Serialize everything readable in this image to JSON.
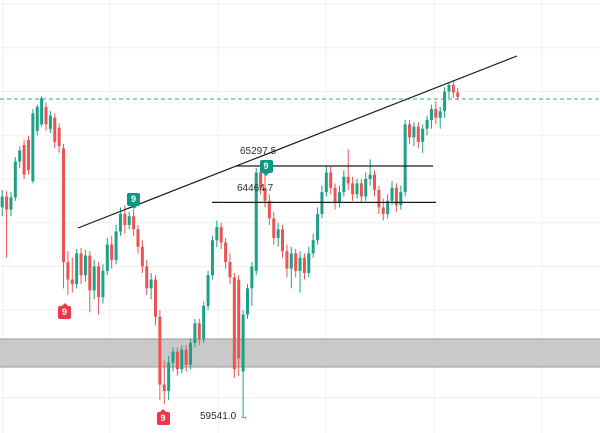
{
  "chart_data": {
    "type": "candlestick",
    "title": "",
    "grid": true,
    "ylim": [
      59191,
      69094
    ],
    "h_grid_prices": [
      60000,
      61000,
      62000,
      63000,
      64000,
      65000,
      66000,
      67000,
      68000,
      69000
    ],
    "v_grid_x": [
      3,
      110,
      218,
      326,
      434,
      542
    ],
    "band": {
      "price_top": 61340,
      "price_bottom": 60700
    },
    "dashed_line": {
      "price": 66830
    },
    "hlines": [
      {
        "label": "65297.5",
        "price": 65297.5,
        "x1": 236,
        "x2": 433,
        "label_x": 240,
        "label_y": 147
      },
      {
        "label": "64464.7",
        "price": 64464.7,
        "x1": 212,
        "x2": 436,
        "label_x": 237,
        "label_y": 184
      }
    ],
    "trendline": {
      "x1": 78,
      "y1": 228,
      "x2": 517,
      "y2": 56
    },
    "low_marker": {
      "label": "59541.0",
      "arrow": "→",
      "price": 59541.0,
      "x": 200,
      "y": 411
    },
    "badges": [
      {
        "label": "9",
        "x": 127,
        "y": 193,
        "dir": "down",
        "color": "#089981"
      },
      {
        "label": "9",
        "x": 259.5,
        "y": 160,
        "dir": "down",
        "color": "#089981"
      },
      {
        "label": "9",
        "x": 58,
        "y": 306,
        "dir": "up",
        "color": "#f23645"
      },
      {
        "label": "9",
        "x": 156.5,
        "y": 412,
        "dir": "up",
        "color": "#f23645"
      }
    ],
    "colors": {
      "up": "#1da186",
      "down": "#ef5350",
      "line": "#1c1c1c",
      "dashed": "#2aae9f",
      "grid": "#f0f0f0",
      "band": "#c9c9c9",
      "band_border": "#9a9a9a",
      "label_text": "#2a2e39"
    },
    "candles": [
      [
        64350,
        64750,
        64150,
        64600
      ],
      [
        64600,
        64720,
        63200,
        64300
      ],
      [
        64300,
        64700,
        64150,
        64580
      ],
      [
        64580,
        65500,
        64500,
        65400
      ],
      [
        65400,
        65750,
        65250,
        65650
      ],
      [
        65780,
        65880,
        65000,
        65100
      ],
      [
        65890,
        65990,
        65100,
        65200
      ],
      [
        64950,
        66600,
        64900,
        66500
      ],
      [
        66100,
        66700,
        66000,
        66650
      ],
      [
        66250,
        66890,
        66200,
        66850
      ],
      [
        66650,
        66750,
        66100,
        66250
      ],
      [
        66150,
        66550,
        66050,
        66450
      ],
      [
        66400,
        66500,
        65700,
        65850
      ],
      [
        66170,
        66270,
        65600,
        65750
      ],
      [
        65700,
        65800,
        62500,
        63100
      ],
      [
        63100,
        63350,
        62350,
        62700
      ],
      [
        62700,
        63200,
        62400,
        62600
      ],
      [
        62600,
        63400,
        62500,
        63300
      ],
      [
        63300,
        63420,
        62600,
        62800
      ],
      [
        62800,
        63380,
        62650,
        63250
      ],
      [
        63250,
        63350,
        61950,
        62450
      ],
      [
        62450,
        63150,
        62250,
        63000
      ],
      [
        63000,
        63100,
        61900,
        62300
      ],
      [
        62300,
        63050,
        62150,
        62900
      ],
      [
        62900,
        63650,
        62800,
        63500
      ],
      [
        63500,
        63700,
        62950,
        63150
      ],
      [
        63150,
        63950,
        63050,
        63800
      ],
      [
        63800,
        64350,
        63700,
        64200
      ],
      [
        64200,
        64400,
        63750,
        63950
      ],
      [
        63950,
        64250,
        63850,
        64150
      ],
      [
        64150,
        64300,
        63700,
        63850
      ],
      [
        63850,
        63950,
        63300,
        63450
      ],
      [
        63450,
        63600,
        62850,
        63000
      ],
      [
        63000,
        63150,
        62350,
        62500
      ],
      [
        62500,
        62850,
        62250,
        62700
      ],
      [
        62700,
        62800,
        61650,
        61850
      ],
      [
        61850,
        62000,
        59950,
        60300
      ],
      [
        60300,
        60850,
        59850,
        60150
      ],
      [
        60150,
        60950,
        59950,
        60800
      ],
      [
        60800,
        61150,
        60600,
        61050
      ],
      [
        61050,
        61150,
        60500,
        60650
      ],
      [
        60650,
        61200,
        60550,
        61100
      ],
      [
        61100,
        61200,
        60600,
        60750
      ],
      [
        60750,
        61350,
        60650,
        61250
      ],
      [
        61250,
        61800,
        61150,
        61700
      ],
      [
        61700,
        61800,
        61200,
        61350
      ],
      [
        61350,
        62200,
        61250,
        62100
      ],
      [
        62100,
        62900,
        62000,
        62800
      ],
      [
        62800,
        63700,
        62700,
        63600
      ],
      [
        63600,
        64050,
        63450,
        63900
      ],
      [
        63900,
        64000,
        63400,
        63550
      ],
      [
        63550,
        63650,
        62950,
        63100
      ],
      [
        63100,
        63300,
        62600,
        62750
      ],
      [
        62750,
        62850,
        60450,
        60650
      ],
      [
        62700,
        62800,
        60500,
        60900
      ],
      [
        60600,
        62000,
        59541,
        61900
      ],
      [
        61900,
        62600,
        61800,
        62500
      ],
      [
        62500,
        63100,
        62100,
        63000
      ],
      [
        62900,
        65250,
        62800,
        65150
      ],
      [
        65150,
        65280,
        64650,
        64800
      ],
      [
        64800,
        65150,
        64350,
        64500
      ],
      [
        64500,
        64650,
        63950,
        64100
      ],
      [
        64100,
        64250,
        63500,
        63650
      ],
      [
        63650,
        64000,
        63450,
        63850
      ],
      [
        63850,
        63950,
        63200,
        63350
      ],
      [
        63350,
        63500,
        62750,
        62950
      ],
      [
        62950,
        63450,
        62500,
        63300
      ],
      [
        63300,
        63400,
        62750,
        62900
      ],
      [
        62900,
        63350,
        62400,
        63200
      ],
      [
        63200,
        63300,
        62700,
        62850
      ],
      [
        62850,
        63450,
        62750,
        63300
      ],
      [
        63300,
        63750,
        63200,
        63600
      ],
      [
        63600,
        64350,
        63500,
        64200
      ],
      [
        64200,
        64850,
        64100,
        64700
      ],
      [
        64700,
        65300,
        64600,
        65150
      ],
      [
        65150,
        65280,
        64650,
        64800
      ],
      [
        64800,
        64900,
        64300,
        64450
      ],
      [
        64450,
        64850,
        64350,
        64700
      ],
      [
        64700,
        65200,
        64600,
        65050
      ],
      [
        65050,
        65680,
        64750,
        64900
      ],
      [
        64900,
        65050,
        64500,
        64650
      ],
      [
        64650,
        65000,
        64550,
        64900
      ],
      [
        64900,
        65000,
        64450,
        64600
      ],
      [
        64600,
        65150,
        64500,
        65000
      ],
      [
        65000,
        65450,
        64850,
        65100
      ],
      [
        65100,
        65200,
        64600,
        64750
      ],
      [
        64750,
        64850,
        64200,
        64350
      ],
      [
        64350,
        64550,
        64050,
        64200
      ],
      [
        64200,
        64650,
        64100,
        64500
      ],
      [
        64500,
        64950,
        64400,
        64800
      ],
      [
        64800,
        64900,
        64250,
        64400
      ],
      [
        64400,
        64850,
        64300,
        64700
      ],
      [
        64700,
        66350,
        64600,
        66250
      ],
      [
        66250,
        66350,
        65800,
        65950
      ],
      [
        65950,
        66300,
        65750,
        66200
      ],
      [
        66200,
        66300,
        65700,
        65850
      ],
      [
        65850,
        66250,
        65600,
        66150
      ],
      [
        66150,
        66450,
        66000,
        66350
      ],
      [
        66350,
        66700,
        66150,
        66600
      ],
      [
        66600,
        66780,
        66250,
        66400
      ],
      [
        66400,
        66650,
        66150,
        66550
      ],
      [
        66550,
        67100,
        66400,
        67000
      ],
      [
        67000,
        67200,
        66850,
        67150
      ],
      [
        67150,
        67230,
        66850,
        66980
      ],
      [
        66980,
        67080,
        66800,
        66880
      ]
    ]
  }
}
